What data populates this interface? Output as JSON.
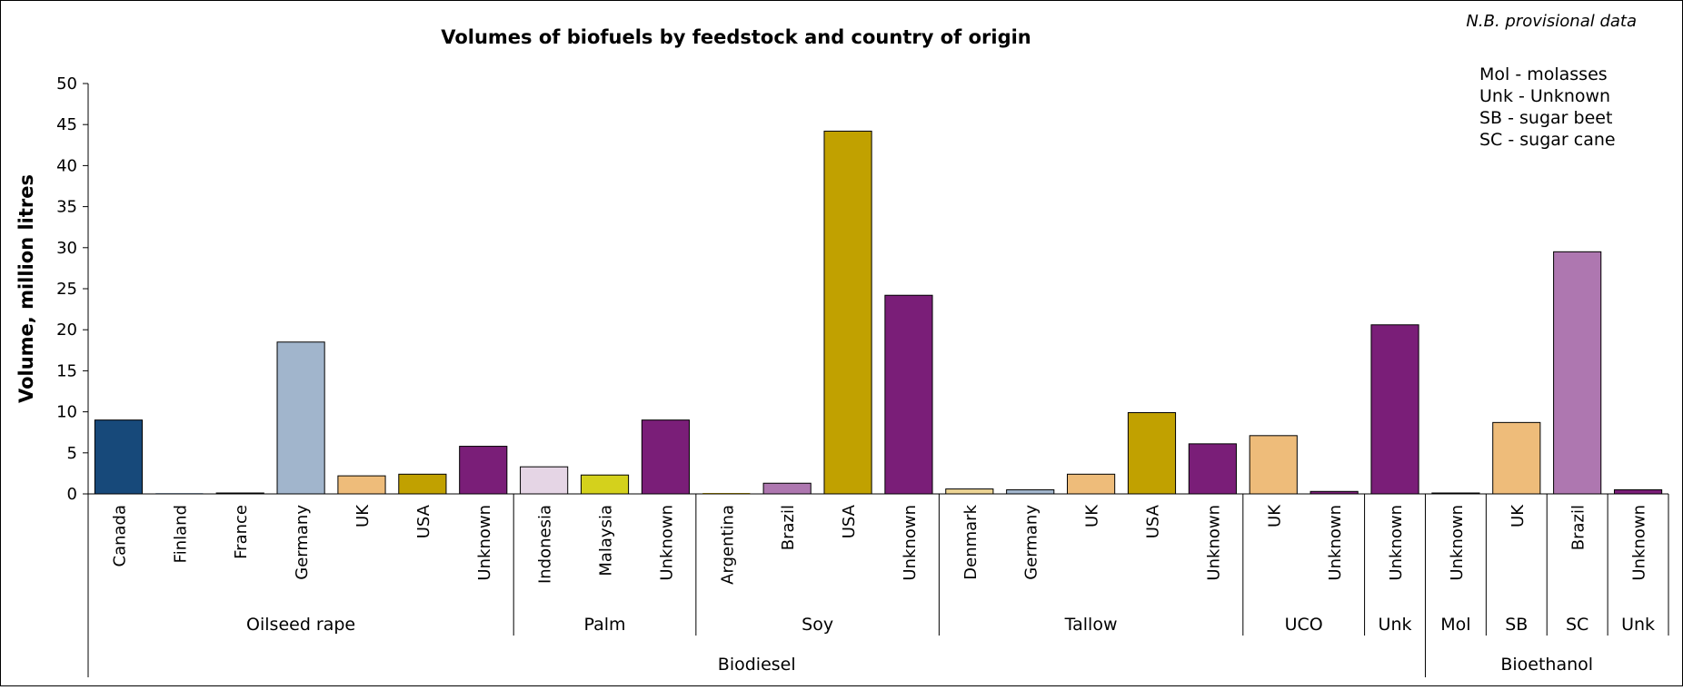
{
  "chart_data": {
    "type": "bar",
    "title": "Volumes of biofuels by feedstock and country of origin",
    "note": "N.B. provisional data",
    "ylabel": "Volume, million litres",
    "ylim": [
      0,
      50
    ],
    "yticks": [
      "0",
      "5",
      "10",
      "15",
      "20",
      "25",
      "30",
      "35",
      "40",
      "45",
      "50"
    ],
    "legend_text": [
      "Mol - molasses",
      "Unk - Unknown",
      "SB - sugar beet",
      "SC - sugar cane"
    ],
    "categories": [
      "Canada",
      "Finland",
      "France",
      "Germany",
      "UK",
      "USA",
      "Unknown",
      "Indonesia",
      "Malaysia",
      "Unknown",
      "Argentina",
      "Brazil",
      "USA",
      "Unknown",
      "Denmark",
      "Germany",
      "UK",
      "USA",
      "Unknown",
      "UK",
      "Unknown",
      "Unknown",
      "Unknown",
      "UK",
      "Brazil",
      "Unknown"
    ],
    "values": [
      9.0,
      0.0,
      0.1,
      18.5,
      2.2,
      2.4,
      5.8,
      3.3,
      2.3,
      9.0,
      0.0,
      1.3,
      44.2,
      24.2,
      0.6,
      0.5,
      2.4,
      9.9,
      6.1,
      7.1,
      0.3,
      20.6,
      0.1,
      8.7,
      29.5,
      0.5
    ],
    "colors": [
      "#17497a",
      "#a1b5cc",
      "#a1b5cc",
      "#a1b5cc",
      "#eebc7a",
      "#c1a100",
      "#7a1e78",
      "#e5d5e5",
      "#d4d11c",
      "#7a1e78",
      "#c1a100",
      "#ae77b0",
      "#c1a100",
      "#7a1e78",
      "#ecd494",
      "#a1b5cc",
      "#eebc7a",
      "#c1a100",
      "#7a1e78",
      "#eebc7a",
      "#7a1e78",
      "#7a1e78",
      "#7a1e78",
      "#eebc7a",
      "#ae77b0",
      "#7a1e78"
    ],
    "feedstock_groups": [
      {
        "label": "Oilseed rape",
        "count": 7
      },
      {
        "label": "Palm",
        "count": 3
      },
      {
        "label": "Soy",
        "count": 4
      },
      {
        "label": "Tallow",
        "count": 5
      },
      {
        "label": "UCO",
        "count": 2
      },
      {
        "label": "Unk",
        "count": 1
      },
      {
        "label": "Mol",
        "count": 1
      },
      {
        "label": "SB",
        "count": 1
      },
      {
        "label": "SC",
        "count": 1
      },
      {
        "label": "Unk",
        "count": 1
      }
    ],
    "fuel_groups": [
      {
        "label": "Biodiesel",
        "count": 22
      },
      {
        "label": "Bioethanol",
        "count": 4
      }
    ],
    "grid": false
  }
}
